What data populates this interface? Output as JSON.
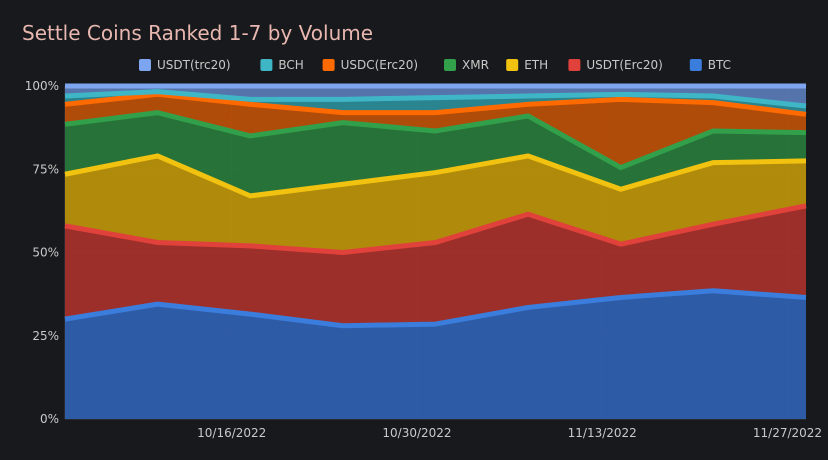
{
  "chart_data": {
    "type": "area",
    "stacked": true,
    "normalized": true,
    "title": "Settle Coins Ranked 1-7 by Volume",
    "ylim": [
      0,
      100
    ],
    "y_ticks": [
      "0%",
      "25%",
      "50%",
      "75%",
      "100%"
    ],
    "x_ticks": [
      {
        "label": "10/16/2022",
        "index": 1.8
      },
      {
        "label": "10/30/2022",
        "index": 3.8
      },
      {
        "label": "11/13/2022",
        "index": 5.8
      },
      {
        "label": "11/27/2022",
        "index": 7.8
      }
    ],
    "grid": true,
    "legend_position": "top",
    "x_points": 9,
    "series": [
      {
        "name": "BTC",
        "color": "#3b7ddd",
        "fill": "#2f5fad",
        "values": [
          30,
          34.5,
          31.5,
          28,
          28.5,
          33.5,
          36.5,
          38.5,
          36.5
        ]
      },
      {
        "name": "USDT(Erc20)",
        "color": "#e0413a",
        "fill": "#a3302b",
        "values": [
          28,
          18.5,
          20.5,
          22,
          24.5,
          28,
          16,
          20,
          27.5
        ]
      },
      {
        "name": "ETH",
        "color": "#f2c210",
        "fill": "#b8900b",
        "values": [
          15.5,
          26,
          15,
          20.5,
          21,
          17.5,
          16.5,
          18.5,
          13.5
        ]
      },
      {
        "name": "XMR",
        "color": "#32a04a",
        "fill": "#28773a",
        "values": [
          15,
          13,
          18,
          18.5,
          12.5,
          12,
          6.5,
          9.5,
          8.5
        ]
      },
      {
        "name": "USDC(Erc20)",
        "color": "#ff6a00",
        "fill": "#b84f08",
        "values": [
          6,
          5.5,
          9.5,
          3,
          5.5,
          3.5,
          20.5,
          8.5,
          5.5
        ]
      },
      {
        "name": "BCH",
        "color": "#3fb6c6",
        "fill": "#2b8a96",
        "values": [
          2.5,
          0.8,
          1.5,
          4,
          4.5,
          2.5,
          1.5,
          2,
          2.5
        ]
      },
      {
        "name": "USDT(trc20)",
        "color": "#7ea6f0",
        "fill": "#5a79b4",
        "values": [
          3,
          1.7,
          4,
          4,
          3.5,
          3,
          2.5,
          3,
          6
        ]
      }
    ]
  }
}
